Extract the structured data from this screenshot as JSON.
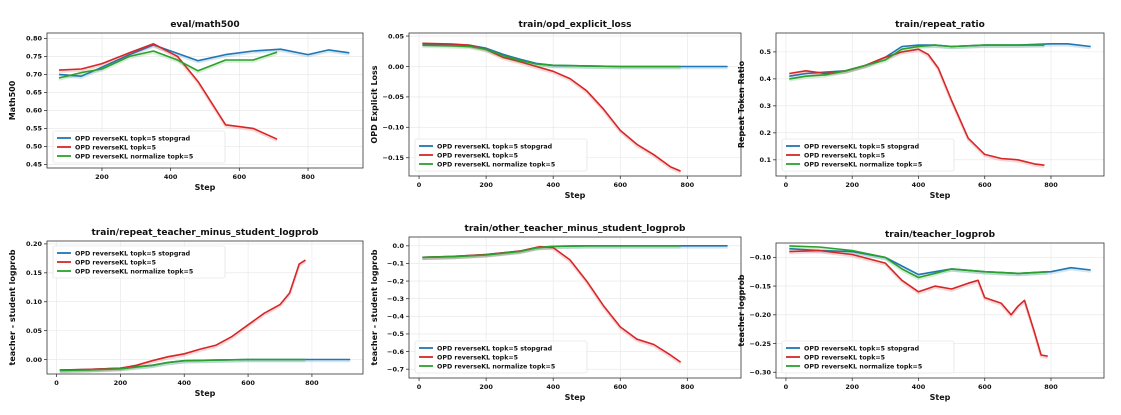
{
  "figure": {
    "legend_entries": [
      "OPD reverseKL topk=5 stopgrad",
      "OPD reverseKL topk=5",
      "OPD reverseKL normalize topk=5"
    ],
    "colors": {
      "stopgrad": "#1f77b4",
      "topk": "#d62728",
      "normalize": "#2ca02c"
    }
  },
  "chart_data": [
    {
      "type": "line",
      "title": "eval/math500",
      "xlabel": "Step",
      "ylabel": "Math500",
      "xlim": [
        40,
        960
      ],
      "ylim": [
        0.44,
        0.815
      ],
      "xticks": [
        200,
        400,
        600,
        800
      ],
      "yticks": [
        0.45,
        0.5,
        0.55,
        0.6,
        0.65,
        0.7,
        0.75,
        0.8
      ],
      "ytick_labels": [
        "0.45",
        "0.50",
        "0.55",
        "0.60",
        "0.65",
        "0.70",
        "0.75",
        "0.80"
      ],
      "grid": true,
      "legend": "bottom-left",
      "series": [
        {
          "name": "OPD reverseKL topk=5 stopgrad",
          "x": [
            75,
            140,
            200,
            280,
            350,
            400,
            480,
            560,
            640,
            720,
            800,
            860,
            920
          ],
          "y": [
            0.7,
            0.695,
            0.72,
            0.755,
            0.782,
            0.765,
            0.738,
            0.755,
            0.765,
            0.77,
            0.755,
            0.768,
            0.76
          ]
        },
        {
          "name": "OPD reverseKL topk=5",
          "x": [
            75,
            140,
            200,
            280,
            350,
            420,
            480,
            560,
            640,
            710
          ],
          "y": [
            0.712,
            0.715,
            0.73,
            0.76,
            0.785,
            0.75,
            0.68,
            0.56,
            0.55,
            0.52
          ]
        },
        {
          "name": "OPD reverseKL normalize topk=5",
          "x": [
            75,
            140,
            200,
            280,
            350,
            420,
            480,
            560,
            640,
            710
          ],
          "y": [
            0.69,
            0.705,
            0.715,
            0.75,
            0.765,
            0.74,
            0.71,
            0.74,
            0.74,
            0.762
          ]
        }
      ]
    },
    {
      "type": "line",
      "title": "train/opd_explicit_loss",
      "xlabel": "Step",
      "ylabel": "OPD Explicit Loss",
      "xlim": [
        -30,
        960
      ],
      "ylim": [
        -0.18,
        0.055
      ],
      "xticks": [
        0,
        200,
        400,
        600,
        800
      ],
      "yticks": [
        0.05,
        0.0,
        -0.05,
        -0.1,
        -0.15
      ],
      "ytick_labels": [
        "0.05",
        "0.00",
        "−0.05",
        "−0.10",
        "−0.15"
      ],
      "grid": true,
      "legend": "bottom-left",
      "series": [
        {
          "name": "OPD reverseKL topk=5 stopgrad",
          "x": [
            10,
            100,
            150,
            200,
            250,
            300,
            350,
            400,
            500,
            600,
            700,
            800,
            920
          ],
          "y": [
            0.037,
            0.036,
            0.035,
            0.03,
            0.02,
            0.012,
            0.005,
            0.002,
            0.001,
            0.0,
            0.0,
            0.0,
            0.0
          ]
        },
        {
          "name": "OPD reverseKL topk=5",
          "x": [
            10,
            100,
            150,
            200,
            250,
            300,
            350,
            400,
            450,
            500,
            550,
            600,
            650,
            700,
            750,
            780
          ],
          "y": [
            0.038,
            0.037,
            0.035,
            0.028,
            0.015,
            0.008,
            0.0,
            -0.008,
            -0.02,
            -0.04,
            -0.07,
            -0.105,
            -0.128,
            -0.145,
            -0.165,
            -0.172
          ]
        },
        {
          "name": "OPD reverseKL normalize topk=5",
          "x": [
            10,
            100,
            150,
            200,
            250,
            300,
            350,
            400,
            500,
            600,
            700,
            780
          ],
          "y": [
            0.035,
            0.034,
            0.033,
            0.028,
            0.018,
            0.01,
            0.004,
            0.002,
            0.001,
            0.0,
            0.0,
            0.0
          ]
        }
      ]
    },
    {
      "type": "line",
      "title": "train/repeat_ratio",
      "xlabel": "Step",
      "ylabel": "Repeat Token Ratio",
      "xlim": [
        -30,
        960
      ],
      "ylim": [
        0.04,
        0.57
      ],
      "xticks": [
        0,
        200,
        400,
        600,
        800
      ],
      "yticks": [
        0.1,
        0.2,
        0.3,
        0.4,
        0.5
      ],
      "ytick_labels": [
        "0.1",
        "0.2",
        "0.3",
        "0.4",
        "0.5"
      ],
      "grid": true,
      "legend": "bottom-left",
      "series": [
        {
          "name": "OPD reverseKL topk=5 stopgrad",
          "x": [
            10,
            60,
            120,
            180,
            240,
            300,
            350,
            400,
            450,
            500,
            600,
            700,
            800,
            850,
            920
          ],
          "y": [
            0.41,
            0.42,
            0.425,
            0.43,
            0.45,
            0.48,
            0.52,
            0.525,
            0.525,
            0.52,
            0.525,
            0.525,
            0.53,
            0.53,
            0.52
          ]
        },
        {
          "name": "OPD reverseKL topk=5",
          "x": [
            10,
            60,
            120,
            180,
            240,
            300,
            350,
            400,
            430,
            460,
            500,
            550,
            600,
            650,
            700,
            750,
            780
          ],
          "y": [
            0.42,
            0.43,
            0.42,
            0.43,
            0.45,
            0.48,
            0.5,
            0.51,
            0.49,
            0.44,
            0.32,
            0.18,
            0.12,
            0.105,
            0.1,
            0.085,
            0.08
          ]
        },
        {
          "name": "OPD reverseKL normalize topk=5",
          "x": [
            10,
            60,
            120,
            180,
            240,
            300,
            350,
            400,
            450,
            500,
            600,
            700,
            780
          ],
          "y": [
            0.4,
            0.41,
            0.415,
            0.43,
            0.45,
            0.47,
            0.51,
            0.52,
            0.525,
            0.52,
            0.525,
            0.525,
            0.525
          ]
        }
      ]
    },
    {
      "type": "line",
      "title": "train/repeat_teacher_minus_student_logprob",
      "xlabel": "Step",
      "ylabel": "teacher - student logprob",
      "xlim": [
        -30,
        960
      ],
      "ylim": [
        -0.025,
        0.205
      ],
      "xticks": [
        0,
        200,
        400,
        600,
        800
      ],
      "yticks": [
        0.0,
        0.05,
        0.1,
        0.15,
        0.2
      ],
      "ytick_labels": [
        "0.00",
        "0.05",
        "0.10",
        "0.15",
        "0.20"
      ],
      "grid": true,
      "legend": "top-left",
      "series": [
        {
          "name": "OPD reverseKL topk=5 stopgrad",
          "x": [
            10,
            100,
            200,
            300,
            350,
            400,
            500,
            600,
            700,
            800,
            920
          ],
          "y": [
            -0.018,
            -0.017,
            -0.015,
            -0.01,
            -0.005,
            -0.002,
            -0.001,
            0.0,
            0.0,
            0.0,
            0.0
          ]
        },
        {
          "name": "OPD reverseKL topk=5",
          "x": [
            10,
            100,
            200,
            250,
            300,
            350,
            400,
            450,
            500,
            550,
            600,
            650,
            700,
            730,
            760,
            780
          ],
          "y": [
            -0.018,
            -0.017,
            -0.015,
            -0.01,
            -0.002,
            0.005,
            0.01,
            0.018,
            0.025,
            0.04,
            0.06,
            0.08,
            0.095,
            0.115,
            0.165,
            0.172
          ]
        },
        {
          "name": "OPD reverseKL normalize topk=5",
          "x": [
            10,
            100,
            200,
            300,
            350,
            400,
            500,
            600,
            700,
            780
          ],
          "y": [
            -0.019,
            -0.018,
            -0.016,
            -0.01,
            -0.005,
            -0.002,
            -0.001,
            0.0,
            0.0,
            0.0
          ]
        }
      ]
    },
    {
      "type": "line",
      "title": "train/other_teacher_minus_student_logprob",
      "xlabel": "Step",
      "ylabel": "teacher - student logprob",
      "xlim": [
        -30,
        960
      ],
      "ylim": [
        -0.75,
        0.05
      ],
      "xticks": [
        0,
        200,
        400,
        600,
        800
      ],
      "yticks": [
        0.0,
        -0.1,
        -0.2,
        -0.3,
        -0.4,
        -0.5,
        -0.6,
        -0.7
      ],
      "ytick_labels": [
        "0.0",
        "−0.1",
        "−0.2",
        "−0.3",
        "−0.4",
        "−0.5",
        "−0.6",
        "−0.7"
      ],
      "grid": true,
      "legend": "bottom-left",
      "series": [
        {
          "name": "OPD reverseKL topk=5 stopgrad",
          "x": [
            10,
            100,
            200,
            300,
            350,
            400,
            500,
            600,
            700,
            800,
            920
          ],
          "y": [
            -0.065,
            -0.06,
            -0.05,
            -0.03,
            -0.01,
            -0.003,
            0.0,
            0.0,
            0.0,
            0.0,
            0.0
          ]
        },
        {
          "name": "OPD reverseKL topk=5",
          "x": [
            10,
            100,
            200,
            300,
            360,
            400,
            450,
            500,
            550,
            600,
            650,
            700,
            750,
            780
          ],
          "y": [
            -0.065,
            -0.06,
            -0.05,
            -0.03,
            -0.005,
            -0.01,
            -0.08,
            -0.2,
            -0.34,
            -0.46,
            -0.53,
            -0.56,
            -0.62,
            -0.66
          ]
        },
        {
          "name": "OPD reverseKL normalize topk=5",
          "x": [
            10,
            100,
            200,
            300,
            350,
            400,
            500,
            600,
            700,
            780
          ],
          "y": [
            -0.065,
            -0.062,
            -0.052,
            -0.032,
            -0.012,
            -0.003,
            0.0,
            0.0,
            0.0,
            0.0
          ]
        }
      ]
    },
    {
      "type": "line",
      "title": "train/teacher_logprob",
      "xlabel": "Step",
      "ylabel": "teacher logprob",
      "xlim": [
        -30,
        960
      ],
      "ylim": [
        -0.31,
        -0.075
      ],
      "xticks": [
        0,
        200,
        400,
        600,
        800
      ],
      "yticks": [
        -0.1,
        -0.15,
        -0.2,
        -0.25,
        -0.3
      ],
      "ytick_labels": [
        "−0.10",
        "−0.15",
        "−0.20",
        "−0.25",
        "−0.30"
      ],
      "grid": true,
      "legend": "bottom-left",
      "series": [
        {
          "name": "OPD reverseKL topk=5 stopgrad",
          "x": [
            10,
            100,
            200,
            300,
            350,
            400,
            450,
            500,
            600,
            700,
            800,
            860,
            920
          ],
          "y": [
            -0.085,
            -0.088,
            -0.09,
            -0.1,
            -0.115,
            -0.13,
            -0.125,
            -0.12,
            -0.125,
            -0.128,
            -0.125,
            -0.118,
            -0.122
          ]
        },
        {
          "name": "OPD reverseKL topk=5",
          "x": [
            10,
            100,
            200,
            300,
            350,
            400,
            450,
            500,
            550,
            580,
            600,
            650,
            680,
            700,
            720,
            750,
            770,
            790
          ],
          "y": [
            -0.09,
            -0.088,
            -0.095,
            -0.11,
            -0.14,
            -0.16,
            -0.15,
            -0.155,
            -0.145,
            -0.14,
            -0.17,
            -0.18,
            -0.2,
            -0.185,
            -0.175,
            -0.23,
            -0.27,
            -0.272
          ]
        },
        {
          "name": "OPD reverseKL normalize topk=5",
          "x": [
            10,
            100,
            200,
            300,
            350,
            400,
            450,
            500,
            600,
            700,
            790
          ],
          "y": [
            -0.08,
            -0.082,
            -0.088,
            -0.1,
            -0.12,
            -0.135,
            -0.128,
            -0.12,
            -0.125,
            -0.128,
            -0.125
          ]
        }
      ]
    }
  ]
}
